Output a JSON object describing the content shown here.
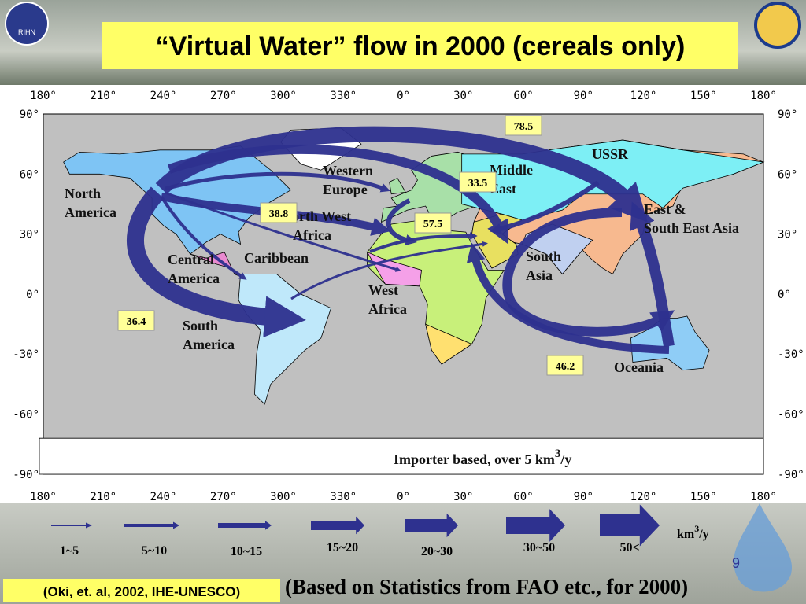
{
  "header": {
    "title": "“Virtual Water” flow in 2000 (cereals only)",
    "logo": "RIHN"
  },
  "map": {
    "lon_labels": [
      "180°",
      "210°",
      "240°",
      "270°",
      "300°",
      "330°",
      "0°",
      "30°",
      "60°",
      "90°",
      "120°",
      "150°",
      "180°"
    ],
    "lat_labels": [
      "90°",
      "60°",
      "30°",
      "0°",
      "-30°",
      "-60°",
      "-90°"
    ],
    "regions": [
      {
        "lines": [
          "North",
          "America"
        ]
      },
      {
        "lines": [
          "Central",
          "America"
        ]
      },
      {
        "lines": [
          "Caribbean"
        ]
      },
      {
        "lines": [
          "South",
          "America"
        ]
      },
      {
        "lines": [
          "Western",
          "Europe"
        ]
      },
      {
        "lines": [
          "North West",
          "Africa"
        ]
      },
      {
        "lines": [
          "West",
          "Africa"
        ]
      },
      {
        "lines": [
          "Middle",
          "East"
        ]
      },
      {
        "lines": [
          "USSR"
        ]
      },
      {
        "lines": [
          "East &",
          "South East Asia"
        ]
      },
      {
        "lines": [
          "South",
          "Asia"
        ]
      },
      {
        "lines": [
          "Oceania"
        ]
      }
    ],
    "flows": [
      78.5,
      33.5,
      38.8,
      57.5,
      36.4,
      46.2
    ],
    "note": {
      "text": "Importer based, over 5 km",
      "sup": "3",
      "tail": "/y"
    }
  },
  "legend": {
    "classes": [
      "1~5",
      "5~10",
      "10~15",
      "15~20",
      "20~30",
      "30~50",
      "50<"
    ],
    "unit": {
      "text": "km",
      "sup": "3",
      "tail": "/y"
    }
  },
  "footer": {
    "citation": "(Oki, et. al, 2002, IHE-UNESCO)",
    "source": "(Based on Statistics from FAO etc., for 2000)",
    "page": "9"
  }
}
